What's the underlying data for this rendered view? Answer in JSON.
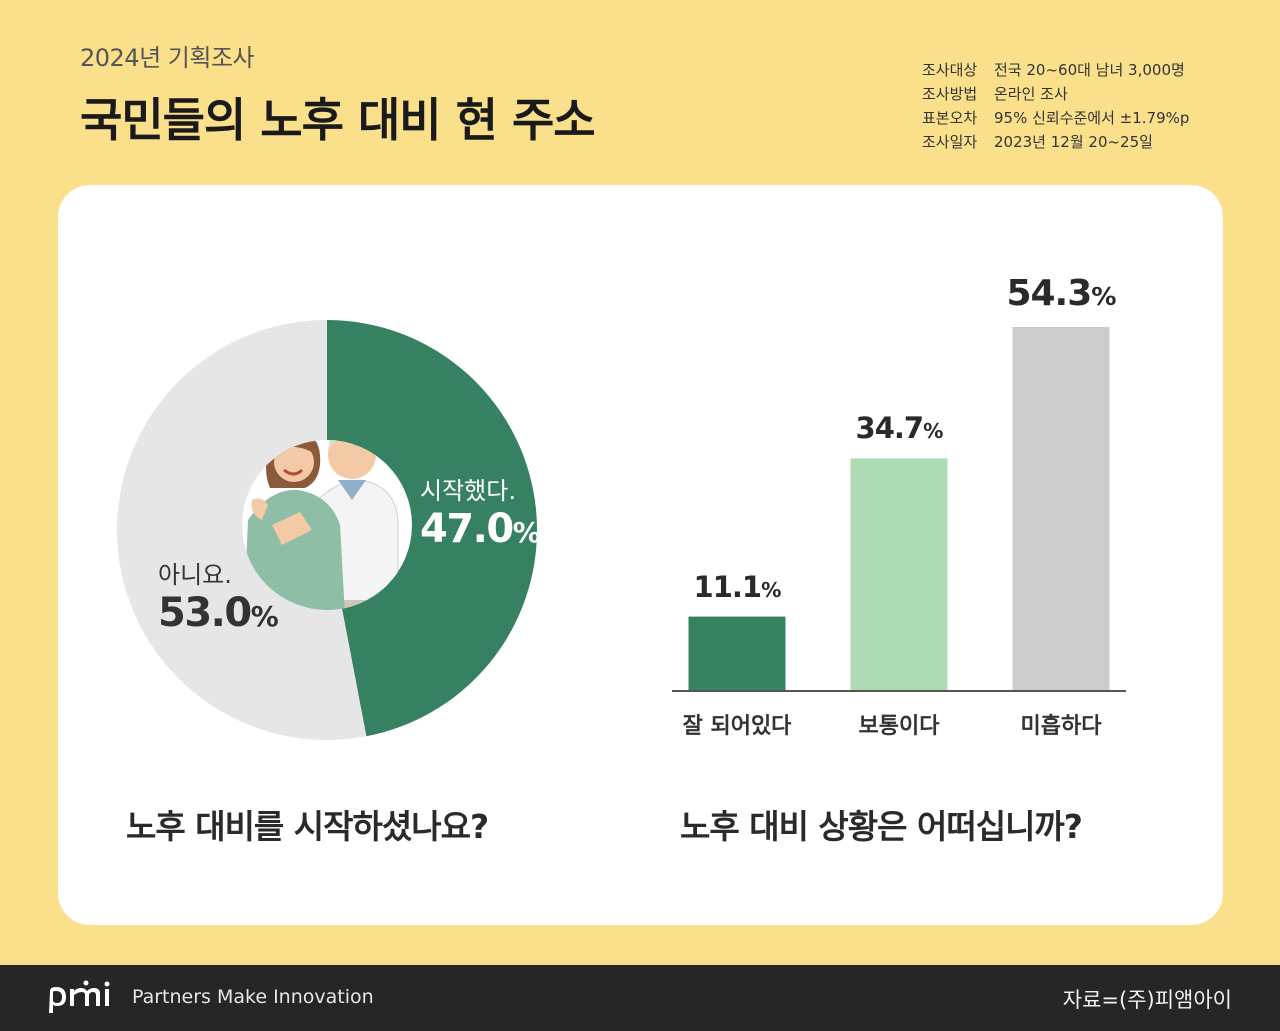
{
  "header": {
    "eyebrow": "2024년 기획조사",
    "title": "국민들의 노후 대비 현 주소",
    "meta": [
      {
        "key": "조사대상",
        "value": "전국 20~60대 남녀 3,000명"
      },
      {
        "key": "조사방법",
        "value": "온라인 조사"
      },
      {
        "key": "표본오차",
        "value": "95% 신뢰수준에서 ±1.79%p"
      },
      {
        "key": "조사일자",
        "value": "2023년 12월 20~25일"
      }
    ]
  },
  "chart_data": [
    {
      "type": "pie",
      "title": "노후 대비를 시작하셨나요?",
      "slices": [
        {
          "label": "시작했다.",
          "value": 47.0,
          "display": "47.0",
          "color": "#358162"
        },
        {
          "label": "아니요.",
          "value": 53.0,
          "display": "53.0",
          "color": "#e6e6e6"
        }
      ]
    },
    {
      "type": "bar",
      "title": "노후 대비 상황은 어떠십니까?",
      "categories": [
        "잘 되어있다",
        "보통이다",
        "미흡하다"
      ],
      "values": [
        11.1,
        34.7,
        54.3
      ],
      "colors": [
        "#358162",
        "#acdbb5",
        "#cccccc"
      ],
      "ylim": [
        0,
        54.3
      ]
    }
  ],
  "units": {
    "percent": "%"
  },
  "footer": {
    "tagline": "Partners Make Innovation",
    "source": "자료=(주)피앰아이",
    "logo_icon": "pmi-logo-icon"
  }
}
